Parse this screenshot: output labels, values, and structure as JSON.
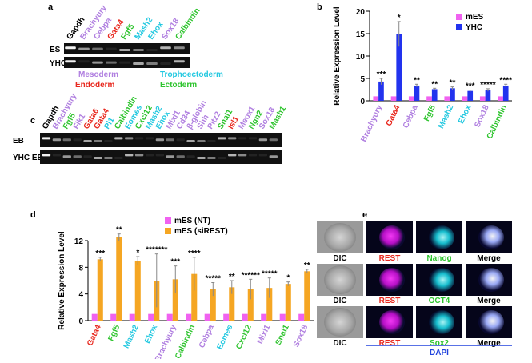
{
  "panel_labels": [
    "a",
    "b",
    "c",
    "d",
    "e"
  ],
  "panel_a": {
    "lanes": [
      {
        "text": "Gapdh",
        "color": "#000000"
      },
      {
        "text": "Brachyury",
        "color": "#b07fe0"
      },
      {
        "text": "Cebpa",
        "color": "#b07fe0"
      },
      {
        "text": "Gata4",
        "color": "#e8281e"
      },
      {
        "text": "Fgf5",
        "color": "#2ec42e"
      },
      {
        "text": "Mash2",
        "color": "#22c8e0"
      },
      {
        "text": "Ehox",
        "color": "#22c8e0"
      },
      {
        "text": "Sox18",
        "color": "#b07fe0"
      },
      {
        "text": "Calbindin",
        "color": "#2ec42e"
      }
    ],
    "rows": [
      "ES",
      "YHC"
    ],
    "lineages": [
      {
        "text": "Mesoderm",
        "color": "#b07fe0"
      },
      {
        "text": "Trophoectoderm",
        "color": "#22c8e0"
      },
      {
        "text": "Endoderm",
        "color": "#e8281e"
      },
      {
        "text": "Ectoderm",
        "color": "#2ec42e"
      }
    ]
  },
  "panel_c": {
    "lanes": [
      {
        "text": "Gapdh",
        "color": "#000000"
      },
      {
        "text": "Brachyury",
        "color": "#b07fe0"
      },
      {
        "text": "Fgf5",
        "color": "#2ec42e"
      },
      {
        "text": "Flk1",
        "color": "#b07fe0"
      },
      {
        "text": "Gata6",
        "color": "#e8281e"
      },
      {
        "text": "Gata4",
        "color": "#e8281e"
      },
      {
        "text": "Pl1",
        "color": "#22c8e0"
      },
      {
        "text": "Calbindin",
        "color": "#2ec42e"
      },
      {
        "text": "Eomes",
        "color": "#22c8e0"
      },
      {
        "text": "Cxcl12",
        "color": "#2ec42e"
      },
      {
        "text": "Mash2",
        "color": "#22c8e0"
      },
      {
        "text": "Ehox",
        "color": "#22c8e0"
      },
      {
        "text": "Mixl1",
        "color": "#b07fe0"
      },
      {
        "text": "Cd34",
        "color": "#b07fe0"
      },
      {
        "text": "β-globin",
        "color": "#b07fe0"
      },
      {
        "text": "Shh",
        "color": "#b07fe0"
      },
      {
        "text": "Pitz2",
        "color": "#b07fe0"
      },
      {
        "text": "Snai1",
        "color": "#2ec42e"
      },
      {
        "text": "Isl1",
        "color": "#e8281e"
      },
      {
        "text": "Meox1",
        "color": "#b07fe0"
      },
      {
        "text": "Ngn2",
        "color": "#2ec42e"
      },
      {
        "text": "Sox18",
        "color": "#b07fe0"
      },
      {
        "text": "Mash1",
        "color": "#2ec42e"
      }
    ],
    "rows": [
      "EB",
      "YHC EB"
    ]
  },
  "panel_e": {
    "rows": [
      [
        "DIC",
        "REST",
        "Nanog",
        "Merge"
      ],
      [
        "DIC",
        "REST",
        "OCT4",
        "Merge"
      ],
      [
        "DIC",
        "REST",
        "Sox2",
        "Merge"
      ]
    ],
    "row_colors": [
      "#000000",
      "#e8281e",
      "#2ec42e",
      "#000000"
    ],
    "footer": "DAPI",
    "footer_color": "#2244dd"
  },
  "chart_data": [
    {
      "type": "bar",
      "y_label": "Relative Expression Level",
      "categories": [
        "Brachyury",
        "Gata4",
        "Cebpa",
        "Fgf5",
        "Mash2",
        "Ehox",
        "Sox18",
        "Calbindin"
      ],
      "category_colors": [
        "#b07fe0",
        "#e8281e",
        "#b07fe0",
        "#2ec42e",
        "#22c8e0",
        "#22c8e0",
        "#b07fe0",
        "#2ec42e"
      ],
      "series": [
        {
          "name": "mES",
          "color": "#f062f0",
          "values": [
            1,
            1,
            1,
            1,
            1,
            1,
            1,
            1
          ]
        },
        {
          "name": "YHC",
          "color": "#2233ee",
          "values": [
            4.3,
            14.9,
            3.4,
            2.6,
            2.8,
            2.2,
            2.4,
            3.4
          ],
          "errors": [
            0.7,
            2.8,
            0.3,
            0.2,
            0.3,
            0.2,
            0.3,
            0.3
          ]
        }
      ],
      "annotations": [
        "***",
        "*",
        "**",
        "**",
        "**",
        "***",
        "*****",
        "****"
      ],
      "ylim": [
        0,
        20
      ],
      "yticks": [
        0,
        5,
        10,
        15,
        20
      ],
      "legend": "top-right"
    },
    {
      "type": "bar",
      "y_label": "Relative Expression Level",
      "categories": [
        "Gata4",
        "Fgf5",
        "Mash2",
        "Ehox",
        "Brachyury",
        "Calbindin",
        "Cebpa",
        "Eomes",
        "Cxcl12",
        "Mixl1",
        "Snai1",
        "Sox18"
      ],
      "category_colors": [
        "#e8281e",
        "#2ec42e",
        "#22c8e0",
        "#22c8e0",
        "#b07fe0",
        "#2ec42e",
        "#b07fe0",
        "#22c8e0",
        "#2ec42e",
        "#b07fe0",
        "#2ec42e",
        "#b07fe0"
      ],
      "series": [
        {
          "name": "mES (NT)",
          "color": "#f062f0",
          "values": [
            1,
            1,
            1,
            1,
            1,
            1,
            1,
            1,
            1,
            1,
            1,
            1
          ]
        },
        {
          "name": "mES (siREST)",
          "color": "#f5a623",
          "values": [
            9.2,
            12.5,
            9.0,
            6.0,
            6.2,
            7.0,
            4.7,
            5.0,
            4.7,
            4.9,
            5.5,
            7.4
          ],
          "errors": [
            0.3,
            0.5,
            0.6,
            4.0,
            2.0,
            2.5,
            1.0,
            1.0,
            1.5,
            1.5,
            0.3,
            0.3
          ]
        }
      ],
      "annotations": [
        "***",
        "**",
        "*",
        "*******",
        "***",
        "****",
        "*****",
        "**",
        "******",
        "*****",
        "*",
        "**"
      ],
      "ylim": [
        0,
        12
      ],
      "yticks": [
        0,
        4,
        8,
        12
      ],
      "legend": "top-center"
    }
  ]
}
